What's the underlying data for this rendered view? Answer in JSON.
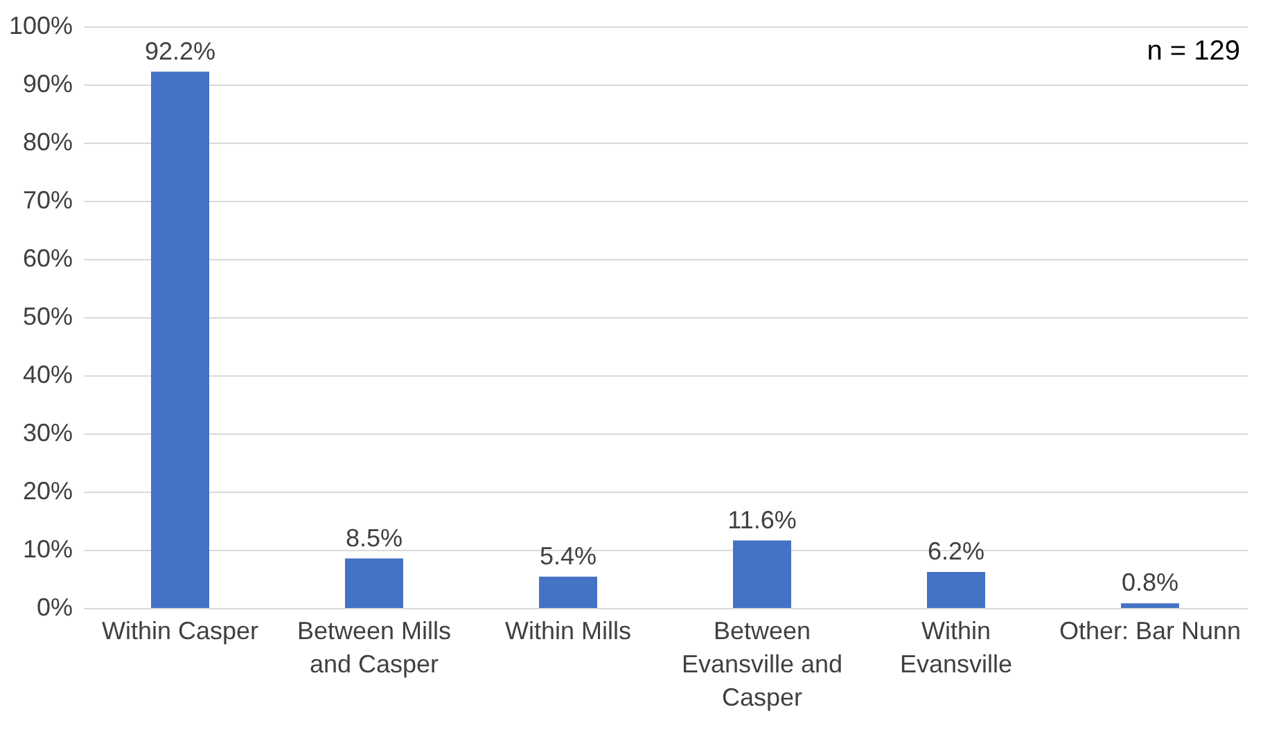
{
  "chart_data": {
    "type": "bar",
    "categories": [
      "Within Casper",
      "Between Mills and Casper",
      "Within Mills",
      "Between Evansville and Casper",
      "Within Evansville",
      "Other: Bar Nunn"
    ],
    "values": [
      92.2,
      8.5,
      5.4,
      11.6,
      6.2,
      0.8
    ],
    "value_labels": [
      "92.2%",
      "8.5%",
      "5.4%",
      "11.6%",
      "6.2%",
      "0.8%"
    ],
    "color": "#4472c4",
    "ylim": [
      0,
      100
    ],
    "yticks": [
      {
        "value": 0,
        "label": "0%"
      },
      {
        "value": 10,
        "label": "10%"
      },
      {
        "value": 20,
        "label": "20%"
      },
      {
        "value": 30,
        "label": "30%"
      },
      {
        "value": 40,
        "label": "40%"
      },
      {
        "value": 50,
        "label": "50%"
      },
      {
        "value": 60,
        "label": "60%"
      },
      {
        "value": 70,
        "label": "70%"
      },
      {
        "value": 80,
        "label": "80%"
      },
      {
        "value": 90,
        "label": "90%"
      },
      {
        "value": 100,
        "label": "100%"
      }
    ],
    "grid": "y",
    "annotations": [
      "n = 129"
    ]
  }
}
